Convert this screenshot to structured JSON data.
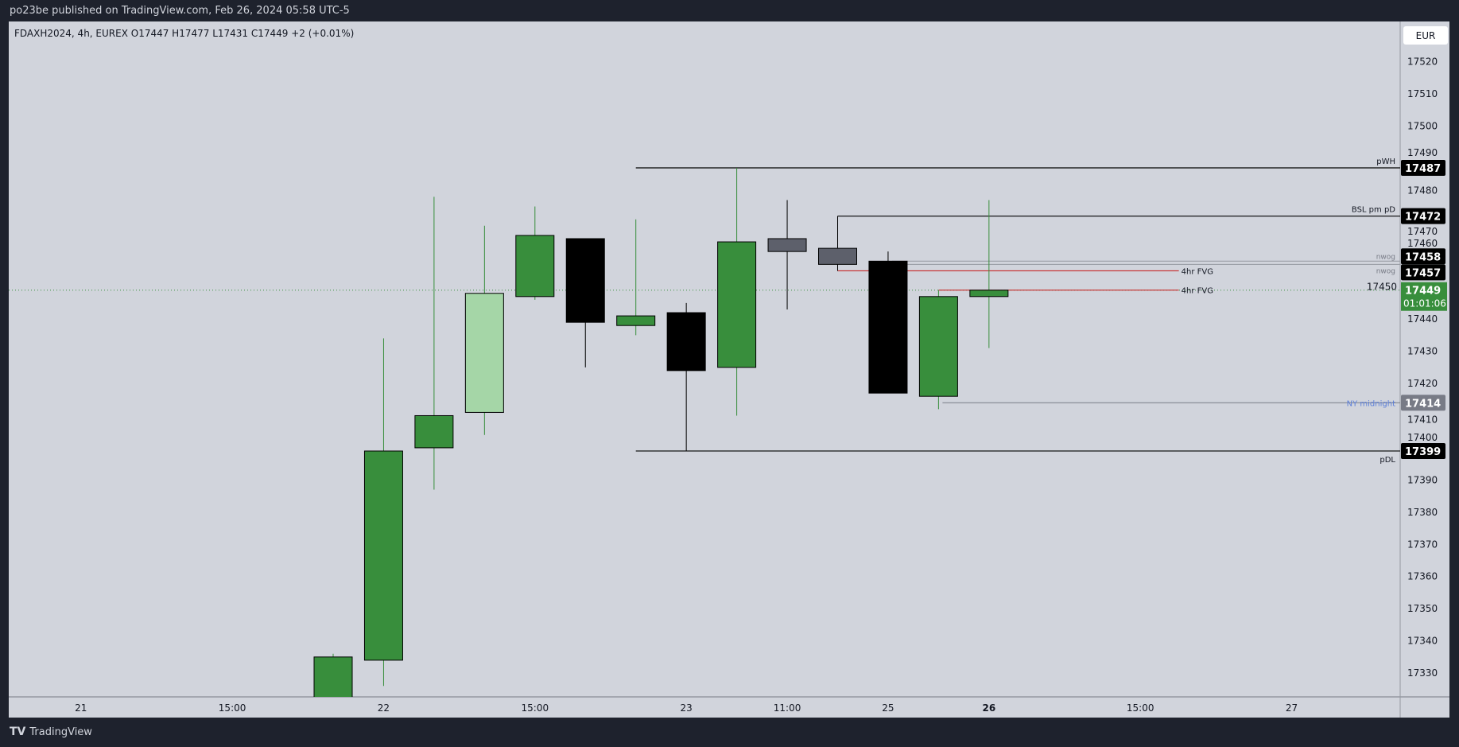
{
  "header": {
    "published": "po23be published on TradingView.com, Feb 26, 2024 05:58 UTC-5"
  },
  "legend": {
    "text": "FDAXH2024, 4h, EUREX  O17447  H17477  L17431  C17449  +2 (+0.01%)"
  },
  "currency_button": "EUR",
  "footer": {
    "brand": "TradingView"
  },
  "colors": {
    "background": "#d1d4dc",
    "up": "#388e3c",
    "up_light": "#a5d6a7",
    "down": "#000000",
    "neutral": "#5d606b",
    "fvg": "#c62828",
    "ny_midnight": "#5b7fd9"
  },
  "chart_data": {
    "type": "candlestick",
    "symbol": "FDAXH2024",
    "interval": "4h",
    "exchange": "EUREX",
    "y_ticks": [
      17330,
      17340,
      17350,
      17360,
      17370,
      17380,
      17390,
      17400,
      17410,
      17420,
      17430,
      17440,
      17450,
      17460,
      17470,
      17480,
      17490,
      17500,
      17510,
      17520
    ],
    "x_ticks": [
      {
        "label": "21",
        "slot": -5
      },
      {
        "label": "15:00",
        "slot": -2
      },
      {
        "label": "22",
        "slot": 1
      },
      {
        "label": "15:00",
        "slot": 4
      },
      {
        "label": "23",
        "slot": 7
      },
      {
        "label": "11:00",
        "slot": 9
      },
      {
        "label": "25",
        "slot": 11
      },
      {
        "label": "26",
        "slot": 13,
        "bold": true
      },
      {
        "label": "15:00",
        "slot": 16
      },
      {
        "label": "27",
        "slot": 19
      }
    ],
    "candles": [
      {
        "o": 17322,
        "h": 17336,
        "l": 17318,
        "c": 17335,
        "color": "up"
      },
      {
        "o": 17334,
        "h": 17434,
        "l": 17326,
        "c": 17399,
        "color": "up"
      },
      {
        "o": 17400,
        "h": 17478,
        "l": 17387,
        "c": 17410,
        "color": "up"
      },
      {
        "o": 17411,
        "h": 17469,
        "l": 17404,
        "c": 17448,
        "color": "up_light"
      },
      {
        "o": 17447,
        "h": 17475,
        "l": 17446,
        "c": 17466,
        "color": "up"
      },
      {
        "o": 17465,
        "h": 17465,
        "l": 17425,
        "c": 17439,
        "color": "down"
      },
      {
        "o": 17438,
        "h": 17471,
        "l": 17435,
        "c": 17441,
        "color": "up"
      },
      {
        "o": 17442,
        "h": 17445,
        "l": 17399,
        "c": 17424,
        "color": "down"
      },
      {
        "o": 17425,
        "h": 17487,
        "l": 17410,
        "c": 17464,
        "color": "up"
      },
      {
        "o": 17465,
        "h": 17477,
        "l": 17443,
        "c": 17461,
        "color": "neutral"
      },
      {
        "o": 17462,
        "h": 17462,
        "l": 17455,
        "c": 17457,
        "color": "neutral"
      },
      {
        "o": 17458,
        "h": 17461,
        "l": 17417,
        "c": 17417,
        "color": "down"
      },
      {
        "o": 17416,
        "h": 17449,
        "l": 17412,
        "c": 17447,
        "color": "up"
      },
      {
        "o": 17447,
        "h": 17477,
        "l": 17431,
        "c": 17449,
        "color": "up"
      }
    ],
    "levels": [
      {
        "price": 17487,
        "label": "pWH",
        "from": 6,
        "color": "#000000",
        "tag": "17487",
        "tag_bg": "#000000",
        "label_pos": "above"
      },
      {
        "price": 17472,
        "label": "BSL pm pD",
        "from": 10,
        "color": "#000000",
        "tag": "17472",
        "tag_bg": "#000000",
        "label_pos": "above"
      },
      {
        "price": 17458,
        "label": "nwog",
        "from": 11,
        "color": "#9598a1",
        "tag": "17458",
        "tag_bg": "#000000",
        "label_pos": "inline"
      },
      {
        "price": 17457,
        "label": "nwog",
        "from": 11,
        "color": "#9598a1",
        "tag": "17457",
        "tag_bg": "#000000",
        "label_pos": "inline"
      },
      {
        "price": 17414,
        "label": "NY midnight",
        "from": 12,
        "color": "#787b86",
        "tag": "17414",
        "tag_bg": "#787b86",
        "label_pos": "inline",
        "label_color": "#5b7fd9"
      },
      {
        "price": 17399,
        "label": "pDL",
        "from": 6,
        "color": "#000000",
        "tag": "17399",
        "tag_bg": "#000000",
        "label_pos": "below"
      }
    ],
    "fvg": [
      {
        "price": 17455,
        "label": "4hr FVG",
        "from": 10,
        "to_slot": 17
      },
      {
        "price": 17449,
        "label": "4hr FVG",
        "from": 12,
        "to_slot": 17
      }
    ],
    "last_price": {
      "price": 17449,
      "tag": "17449",
      "countdown": "01:01:06",
      "color": "#388e3c"
    }
  }
}
